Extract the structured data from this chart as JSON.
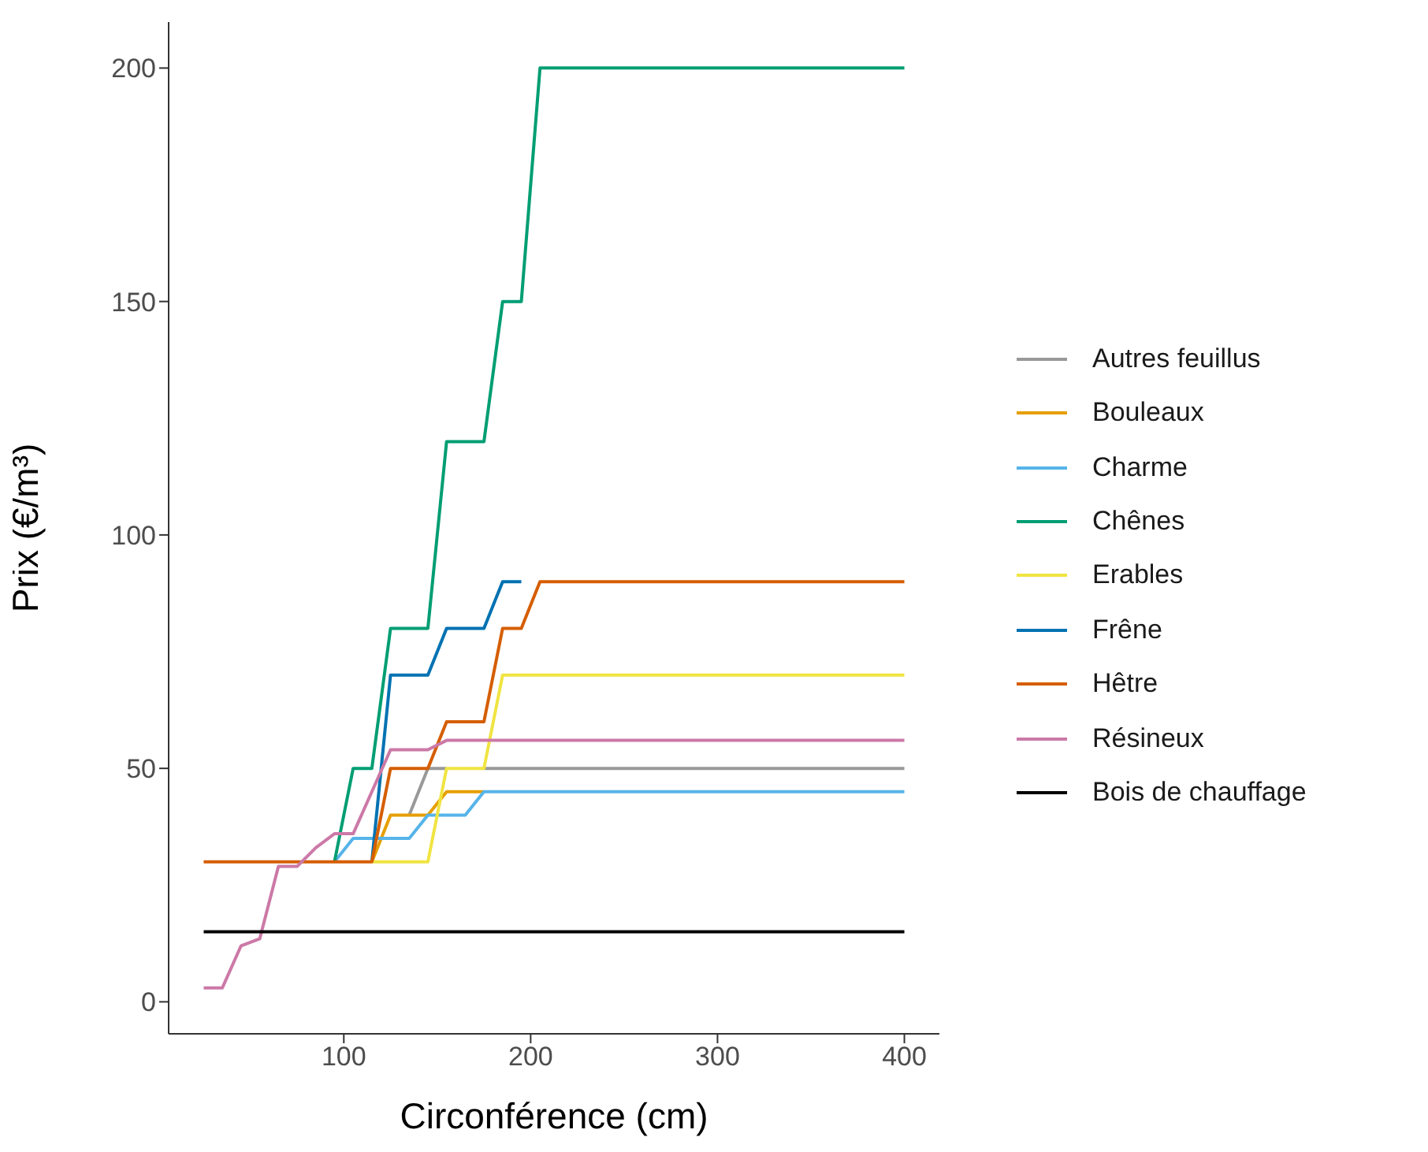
{
  "chart_data": {
    "type": "line",
    "xlabel": "Circonférence (cm)",
    "ylabel": "Prix (€/m³)",
    "x": [
      25,
      35,
      45,
      55,
      65,
      75,
      85,
      95,
      105,
      115,
      125,
      135,
      145,
      155,
      165,
      175,
      185,
      195,
      205,
      400
    ],
    "series": [
      {
        "name": "Autres feuillus",
        "color": "#999999",
        "values": [
          null,
          null,
          null,
          null,
          null,
          null,
          null,
          null,
          null,
          null,
          null,
          40,
          50,
          50,
          null,
          50,
          50,
          50,
          50,
          50
        ]
      },
      {
        "name": "Bouleaux",
        "color": "#e69f00",
        "values": [
          null,
          null,
          null,
          null,
          null,
          null,
          null,
          null,
          null,
          30,
          40,
          40,
          40,
          45,
          45,
          45,
          null,
          null,
          null,
          null
        ]
      },
      {
        "name": "Charme",
        "color": "#56b4e9",
        "values": [
          null,
          null,
          null,
          null,
          null,
          null,
          null,
          30,
          35,
          35,
          35,
          35,
          40,
          40,
          40,
          45,
          45,
          45,
          45,
          45
        ]
      },
      {
        "name": "Chênes",
        "color": "#009e73",
        "values": [
          null,
          null,
          null,
          null,
          null,
          null,
          null,
          30,
          50,
          50,
          80,
          80,
          80,
          120,
          120,
          120,
          150,
          150,
          200,
          200
        ]
      },
      {
        "name": "Erables",
        "color": "#f0e442",
        "values": [
          null,
          null,
          null,
          null,
          null,
          null,
          null,
          null,
          null,
          30,
          30,
          30,
          30,
          50,
          50,
          50,
          70,
          70,
          70,
          70
        ]
      },
      {
        "name": "Frêne",
        "color": "#0072b2",
        "values": [
          null,
          null,
          null,
          null,
          null,
          null,
          null,
          null,
          null,
          30,
          70,
          70,
          70,
          80,
          80,
          80,
          90,
          90,
          null,
          null
        ]
      },
      {
        "name": "Hêtre",
        "color": "#d55e00",
        "values": [
          30,
          30,
          30,
          30,
          30,
          30,
          30,
          30,
          30,
          30,
          50,
          50,
          50,
          60,
          60,
          60,
          80,
          80,
          90,
          90
        ]
      },
      {
        "name": "Résineux",
        "color": "#cc79a7",
        "values": [
          3,
          3,
          12,
          13.5,
          29,
          29,
          33,
          36,
          36,
          45,
          54,
          54,
          54,
          56,
          56,
          56,
          56,
          56,
          56,
          56
        ]
      },
      {
        "name": "Bois de chauffage",
        "color": "#000000",
        "values": [
          15,
          15,
          15,
          15,
          15,
          15,
          15,
          15,
          15,
          15,
          15,
          15,
          15,
          15,
          15,
          15,
          15,
          15,
          15,
          15
        ]
      }
    ],
    "xlim": [
      6.25,
      418.75
    ],
    "xticks": [
      100,
      200,
      300,
      400
    ],
    "ylim": [
      -6.85,
      209.85
    ],
    "yticks": [
      0,
      50,
      100,
      150,
      200
    ],
    "grid": false,
    "legend": "right",
    "marker": "none",
    "line_style": "solid"
  }
}
